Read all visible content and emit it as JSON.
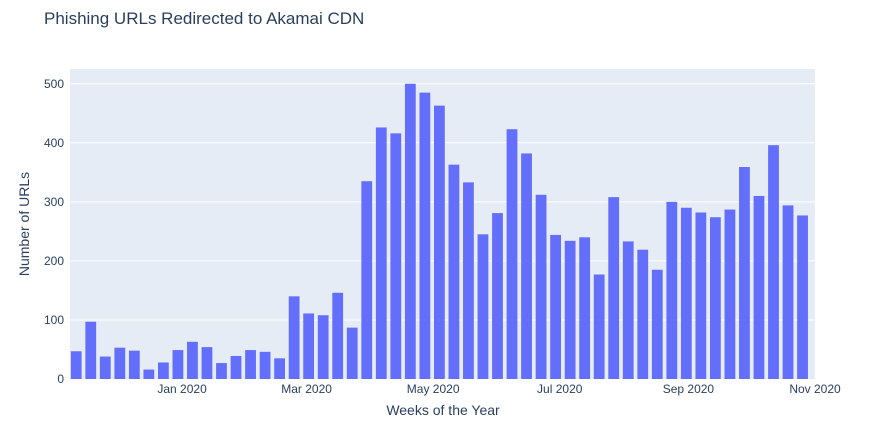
{
  "colors": {
    "plot_background": "#E5ECF6",
    "gridline": "#FFFFFF",
    "bar": "#636EFA",
    "text": "#2A3F5F",
    "page_background": "#FFFFFF"
  },
  "chart_data": {
    "type": "bar",
    "title": "Phishing URLs Redirected to Akamai CDN",
    "xlabel": "Weeks of the Year",
    "ylabel": "Number of URLs",
    "x_axis_kind": "date",
    "xlim": [
      "2019-11-08",
      "2020-11-01"
    ],
    "ylim": [
      0,
      525
    ],
    "yticks": [
      0,
      100,
      200,
      300,
      400,
      500
    ],
    "xticks": [
      {
        "date": "2020-01-01",
        "label": "Jan 2020"
      },
      {
        "date": "2020-03-01",
        "label": "Mar 2020"
      },
      {
        "date": "2020-05-01",
        "label": "May 2020"
      },
      {
        "date": "2020-07-01",
        "label": "Jul 2020"
      },
      {
        "date": "2020-09-01",
        "label": "Sep 2020"
      },
      {
        "date": "2020-11-01",
        "label": "Nov 2020"
      }
    ],
    "bar_width_days": 5.2,
    "grid": true,
    "legend": false,
    "x": [
      "2019-11-11",
      "2019-11-18",
      "2019-11-25",
      "2019-12-02",
      "2019-12-09",
      "2019-12-16",
      "2019-12-23",
      "2019-12-30",
      "2020-01-06",
      "2020-01-13",
      "2020-01-20",
      "2020-01-27",
      "2020-02-03",
      "2020-02-10",
      "2020-02-17",
      "2020-02-24",
      "2020-03-02",
      "2020-03-09",
      "2020-03-16",
      "2020-03-23",
      "2020-03-30",
      "2020-04-06",
      "2020-04-13",
      "2020-04-20",
      "2020-04-27",
      "2020-05-04",
      "2020-05-11",
      "2020-05-18",
      "2020-05-25",
      "2020-06-01",
      "2020-06-08",
      "2020-06-15",
      "2020-06-22",
      "2020-06-29",
      "2020-07-06",
      "2020-07-13",
      "2020-07-20",
      "2020-07-27",
      "2020-08-03",
      "2020-08-10",
      "2020-08-17",
      "2020-08-24",
      "2020-08-31",
      "2020-09-07",
      "2020-09-14",
      "2020-09-21",
      "2020-09-28",
      "2020-10-05",
      "2020-10-12",
      "2020-10-19",
      "2020-10-26"
    ],
    "values": [
      47,
      97,
      38,
      53,
      48,
      16,
      28,
      49,
      63,
      54,
      27,
      39,
      49,
      46,
      35,
      140,
      111,
      108,
      146,
      87,
      335,
      426,
      416,
      500,
      485,
      463,
      363,
      333,
      245,
      281,
      423,
      382,
      312,
      244,
      234,
      240,
      177,
      308,
      233,
      219,
      185,
      300,
      290,
      282,
      274,
      287,
      359,
      310,
      396,
      294,
      277
    ]
  }
}
